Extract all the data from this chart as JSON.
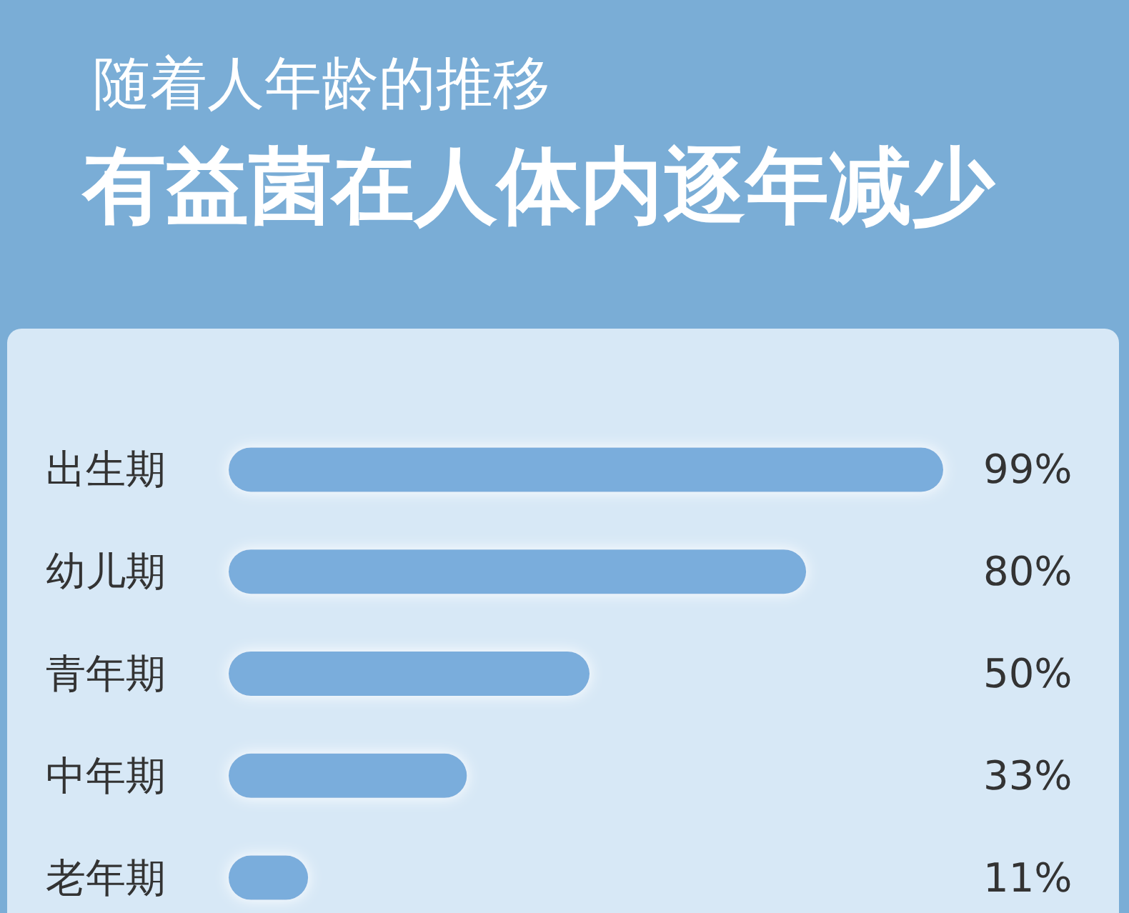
{
  "chart_data": {
    "type": "bar",
    "orientation": "horizontal",
    "subtitle": "随着人年龄的推移",
    "title": "有益菌在人体内逐年减少",
    "categories": [
      "出生期",
      "幼儿期",
      "青年期",
      "中年期",
      "老年期"
    ],
    "values": [
      99,
      80,
      50,
      33,
      11
    ],
    "value_labels": [
      "99%",
      "80%",
      "50%",
      "33%",
      "11%"
    ],
    "color": "#7aaddc"
  }
}
